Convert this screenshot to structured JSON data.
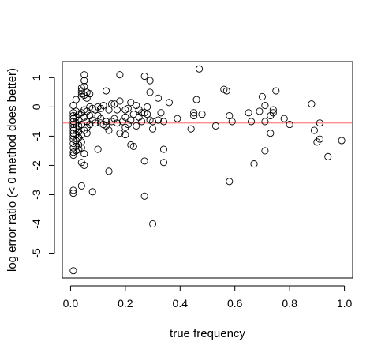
{
  "chart_data": {
    "type": "scatter",
    "title": "",
    "xlabel": "true frequency",
    "ylabel": "log error ratio (< 0 method does better)",
    "xlim": [
      -0.03,
      1.03
    ],
    "ylim": [
      -5.85,
      1.55
    ],
    "x_ticks": [
      0.0,
      0.2,
      0.4,
      0.6,
      0.8,
      1.0
    ],
    "x_tick_labels": [
      "0.0",
      "0.2",
      "0.4",
      "0.6",
      "0.8",
      "1.0"
    ],
    "y_ticks": [
      1,
      0,
      -1,
      -2,
      -3,
      -4,
      -5
    ],
    "y_tick_labels": [
      "1",
      "0",
      "-1",
      "-2",
      "-3",
      "-4",
      "-5"
    ],
    "grid": false,
    "reference_line": {
      "y": -0.55,
      "color": "#ff8080"
    },
    "point_color": "#000000",
    "points": [
      [
        0.01,
        -0.2
      ],
      [
        0.01,
        -0.3
      ],
      [
        0.01,
        -0.4
      ],
      [
        0.01,
        -0.5
      ],
      [
        0.01,
        -0.6
      ],
      [
        0.01,
        -0.7
      ],
      [
        0.01,
        -0.8
      ],
      [
        0.01,
        -0.9
      ],
      [
        0.01,
        -1.0
      ],
      [
        0.01,
        -1.1
      ],
      [
        0.01,
        -1.25
      ],
      [
        0.01,
        -1.4
      ],
      [
        0.01,
        -1.55
      ],
      [
        0.01,
        -1.65
      ],
      [
        0.01,
        0.05
      ],
      [
        0.01,
        -2.85
      ],
      [
        0.01,
        -2.95
      ],
      [
        0.01,
        -5.6
      ],
      [
        0.02,
        -0.15
      ],
      [
        0.02,
        -0.35
      ],
      [
        0.02,
        -0.55
      ],
      [
        0.02,
        -0.75
      ],
      [
        0.02,
        -0.95
      ],
      [
        0.02,
        -1.15
      ],
      [
        0.02,
        -1.35
      ],
      [
        0.02,
        -1.5
      ],
      [
        0.02,
        0.25
      ],
      [
        0.03,
        -0.25
      ],
      [
        0.03,
        -0.45
      ],
      [
        0.03,
        -0.65
      ],
      [
        0.03,
        -0.85
      ],
      [
        0.03,
        -1.05
      ],
      [
        0.03,
        -1.3
      ],
      [
        0.03,
        -1.45
      ],
      [
        0.04,
        0.35
      ],
      [
        0.04,
        0.45
      ],
      [
        0.04,
        0.55
      ],
      [
        0.04,
        0.65
      ],
      [
        0.04,
        -0.2
      ],
      [
        0.04,
        -0.6
      ],
      [
        0.04,
        -0.95
      ],
      [
        0.04,
        -1.2
      ],
      [
        0.04,
        -1.4
      ],
      [
        0.04,
        -1.9
      ],
      [
        0.04,
        -2.7
      ],
      [
        0.05,
        1.1
      ],
      [
        0.05,
        0.9
      ],
      [
        0.05,
        0.7
      ],
      [
        0.05,
        0.4
      ],
      [
        0.05,
        -0.1
      ],
      [
        0.05,
        -0.35
      ],
      [
        0.05,
        -0.8
      ],
      [
        0.05,
        -1.6
      ],
      [
        0.05,
        -2.0
      ],
      [
        0.06,
        0.5
      ],
      [
        0.06,
        0.3
      ],
      [
        0.06,
        -0.15
      ],
      [
        0.06,
        -0.5
      ],
      [
        0.06,
        -0.7
      ],
      [
        0.06,
        -0.9
      ],
      [
        0.07,
        0.45
      ],
      [
        0.07,
        0.0
      ],
      [
        0.07,
        -0.3
      ],
      [
        0.07,
        -0.6
      ],
      [
        0.08,
        -0.05
      ],
      [
        0.08,
        -0.45
      ],
      [
        0.08,
        -2.9
      ],
      [
        0.09,
        -0.1
      ],
      [
        0.09,
        -0.55
      ],
      [
        0.1,
        0.0
      ],
      [
        0.1,
        -0.3
      ],
      [
        0.1,
        -1.45
      ],
      [
        0.11,
        -0.05
      ],
      [
        0.11,
        -0.4
      ],
      [
        0.11,
        -0.55
      ],
      [
        0.12,
        0.05
      ],
      [
        0.12,
        -0.6
      ],
      [
        0.13,
        0.55
      ],
      [
        0.13,
        -0.5
      ],
      [
        0.13,
        -0.65
      ],
      [
        0.14,
        -0.1
      ],
      [
        0.14,
        -0.8
      ],
      [
        0.14,
        -2.2
      ],
      [
        0.15,
        0.1
      ],
      [
        0.15,
        -0.5
      ],
      [
        0.16,
        0.1
      ],
      [
        0.16,
        -0.4
      ],
      [
        0.17,
        -0.1
      ],
      [
        0.17,
        -0.55
      ],
      [
        0.18,
        1.1
      ],
      [
        0.18,
        0.2
      ],
      [
        0.18,
        -0.9
      ],
      [
        0.19,
        -0.5
      ],
      [
        0.2,
        -0.1
      ],
      [
        0.2,
        -0.35
      ],
      [
        0.2,
        -0.7
      ],
      [
        0.2,
        -0.95
      ],
      [
        0.21,
        -0.05
      ],
      [
        0.21,
        -0.6
      ],
      [
        0.22,
        0.15
      ],
      [
        0.22,
        -0.45
      ],
      [
        0.22,
        -1.3
      ],
      [
        0.23,
        -0.25
      ],
      [
        0.23,
        -1.35
      ],
      [
        0.24,
        0.05
      ],
      [
        0.24,
        -0.65
      ],
      [
        0.25,
        -0.1
      ],
      [
        0.25,
        -0.35
      ],
      [
        0.26,
        -0.2
      ],
      [
        0.26,
        -0.5
      ],
      [
        0.27,
        1.05
      ],
      [
        0.27,
        -0.2
      ],
      [
        0.27,
        -1.85
      ],
      [
        0.27,
        -3.05
      ],
      [
        0.28,
        0.0
      ],
      [
        0.28,
        -0.25
      ],
      [
        0.29,
        0.9
      ],
      [
        0.29,
        0.5
      ],
      [
        0.29,
        -0.45
      ],
      [
        0.3,
        -0.5
      ],
      [
        0.3,
        -0.75
      ],
      [
        0.3,
        -4.0
      ],
      [
        0.32,
        0.3
      ],
      [
        0.32,
        -0.45
      ],
      [
        0.33,
        -0.2
      ],
      [
        0.34,
        -0.5
      ],
      [
        0.34,
        -1.45
      ],
      [
        0.34,
        -1.9
      ],
      [
        0.36,
        0.15
      ],
      [
        0.39,
        -0.4
      ],
      [
        0.44,
        -0.75
      ],
      [
        0.45,
        -0.2
      ],
      [
        0.45,
        -0.3
      ],
      [
        0.46,
        0.25
      ],
      [
        0.47,
        1.3
      ],
      [
        0.48,
        -0.25
      ],
      [
        0.53,
        -0.65
      ],
      [
        0.56,
        0.6
      ],
      [
        0.57,
        0.55
      ],
      [
        0.58,
        -0.3
      ],
      [
        0.58,
        -2.55
      ],
      [
        0.59,
        -0.5
      ],
      [
        0.65,
        -0.2
      ],
      [
        0.66,
        -0.5
      ],
      [
        0.67,
        -1.95
      ],
      [
        0.69,
        -0.15
      ],
      [
        0.7,
        0.35
      ],
      [
        0.71,
        0.05
      ],
      [
        0.71,
        -0.5
      ],
      [
        0.71,
        -1.5
      ],
      [
        0.73,
        -0.9
      ],
      [
        0.73,
        -0.3
      ],
      [
        0.74,
        -0.1
      ],
      [
        0.74,
        -0.2
      ],
      [
        0.75,
        0.55
      ],
      [
        0.78,
        -0.4
      ],
      [
        0.8,
        -0.6
      ],
      [
        0.88,
        0.1
      ],
      [
        0.89,
        -0.8
      ],
      [
        0.9,
        -1.2
      ],
      [
        0.91,
        -0.55
      ],
      [
        0.91,
        -1.1
      ],
      [
        0.94,
        -1.7
      ],
      [
        0.99,
        -1.15
      ]
    ]
  }
}
